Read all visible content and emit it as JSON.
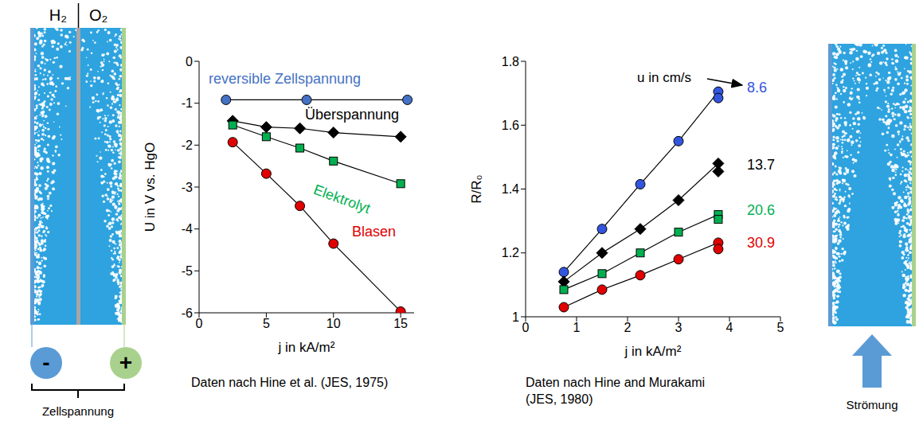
{
  "chart_data": [
    {
      "type": "line",
      "x_label": "j in kA/m²",
      "y_label": "U in V vs. HgO",
      "caption": "Daten nach Hine et al. (JES, 1975)",
      "xlim": [
        0,
        16
      ],
      "xticks": [
        0,
        5,
        10,
        15
      ],
      "ylim": [
        -6,
        0
      ],
      "yticks": [
        -6,
        -5,
        -4,
        -3,
        -2,
        -1,
        0
      ],
      "grid": false,
      "series": [
        {
          "name": "reversible Zellspannung",
          "color": "#4472c4",
          "marker": "circle",
          "x": [
            2,
            8,
            15.5
          ],
          "values": [
            -0.92,
            -0.92,
            -0.92
          ]
        },
        {
          "name": "Überspannung",
          "color": "#000000",
          "marker": "diamond",
          "x": [
            2.5,
            5,
            7.5,
            10,
            15
          ],
          "values": [
            -1.42,
            -1.57,
            -1.6,
            -1.7,
            -1.8
          ]
        },
        {
          "name": "Elektrolyt",
          "color": "#00b050",
          "marker": "square",
          "x": [
            2.5,
            5,
            7.5,
            10,
            15
          ],
          "values": [
            -1.52,
            -1.8,
            -2.07,
            -2.38,
            -2.92
          ]
        },
        {
          "name": "Blasen",
          "color": "#e00000",
          "marker": "circle",
          "x": [
            2.5,
            5,
            7.5,
            10,
            15
          ],
          "values": [
            -1.93,
            -2.68,
            -3.45,
            -4.35,
            -5.97
          ]
        }
      ]
    },
    {
      "type": "line",
      "x_label": "j in kA/m²",
      "y_label": "R/R₀",
      "caption": "Daten nach Hine and Murakami (JES, 1980)",
      "annotation": "u in cm/s",
      "xlim": [
        0,
        5
      ],
      "xticks": [
        0,
        1,
        2,
        3,
        4,
        5
      ],
      "ylim": [
        1,
        1.8
      ],
      "yticks": [
        1,
        1.2,
        1.4,
        1.6,
        1.8
      ],
      "grid": false,
      "series": [
        {
          "name": "8.6",
          "color": "#3355dd",
          "marker": "circle",
          "x": [
            0.75,
            1.5,
            2.25,
            3.0,
            3.78,
            3.78
          ],
          "values": [
            1.14,
            1.275,
            1.415,
            1.55,
            1.705,
            1.685
          ]
        },
        {
          "name": "13.7",
          "color": "#000000",
          "marker": "diamond",
          "x": [
            0.75,
            1.5,
            2.25,
            3.0,
            3.78,
            3.78
          ],
          "values": [
            1.11,
            1.2,
            1.275,
            1.365,
            1.48,
            1.455
          ]
        },
        {
          "name": "20.6",
          "color": "#00b050",
          "marker": "square",
          "x": [
            0.75,
            1.5,
            2.25,
            3.0,
            3.78,
            3.78
          ],
          "values": [
            1.085,
            1.135,
            1.2,
            1.265,
            1.32,
            1.305
          ]
        },
        {
          "name": "30.9",
          "color": "#e00000",
          "marker": "circle",
          "x": [
            0.75,
            1.5,
            2.25,
            3.0,
            3.78,
            3.78
          ],
          "values": [
            1.03,
            1.085,
            1.13,
            1.18,
            1.232,
            1.212
          ]
        }
      ]
    }
  ],
  "diagrams": {
    "cell": {
      "gas_labels": [
        "H₂",
        "O₂"
      ],
      "terminals": [
        "-",
        "+"
      ],
      "caption": "Zellspannung"
    },
    "flow_cell": {
      "caption": "Strömung"
    }
  }
}
